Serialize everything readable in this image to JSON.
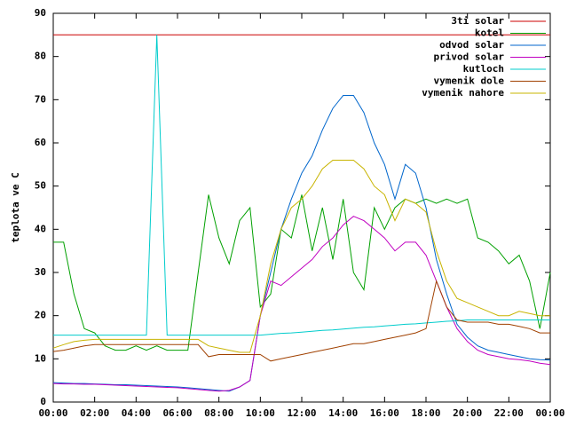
{
  "chart_data": {
    "type": "line",
    "y_label": "teplota ve C",
    "x": [
      0,
      0.5,
      1,
      1.5,
      2,
      2.5,
      3,
      3.5,
      4,
      4.5,
      5,
      5.5,
      6,
      6.5,
      7,
      7.5,
      8,
      8.5,
      9,
      9.5,
      10,
      10.5,
      11,
      11.5,
      12,
      12.5,
      13,
      13.5,
      14,
      14.5,
      15,
      15.5,
      16,
      16.5,
      17,
      17.5,
      18,
      18.5,
      19,
      19.5,
      20,
      20.5,
      21,
      21.5,
      22,
      22.5,
      23,
      23.5,
      24
    ],
    "xlim": [
      0,
      24
    ],
    "xticks": [
      {
        "value": 0,
        "label": "00:00"
      },
      {
        "value": 2,
        "label": "02:00"
      },
      {
        "value": 4,
        "label": "04:00"
      },
      {
        "value": 6,
        "label": "06:00"
      },
      {
        "value": 8,
        "label": "08:00"
      },
      {
        "value": 10,
        "label": "10:00"
      },
      {
        "value": 12,
        "label": "12:00"
      },
      {
        "value": 14,
        "label": "14:00"
      },
      {
        "value": 16,
        "label": "16:00"
      },
      {
        "value": 18,
        "label": "18:00"
      },
      {
        "value": 20,
        "label": "20:00"
      },
      {
        "value": 22,
        "label": "22:00"
      },
      {
        "value": 24,
        "label": "00:00"
      }
    ],
    "ylim": [
      0,
      90
    ],
    "yticks": [
      0,
      10,
      20,
      30,
      40,
      50,
      60,
      70,
      80,
      90
    ],
    "grid": false,
    "legend": "top-right",
    "series": [
      {
        "name": "3ti solar",
        "color": "#cc0000",
        "values": [
          85,
          85,
          85,
          85,
          85,
          85,
          85,
          85,
          85,
          85,
          85,
          85,
          85,
          85,
          85,
          85,
          85,
          85,
          85,
          85,
          85,
          85,
          85,
          85,
          85,
          85,
          85,
          85,
          85,
          85,
          85,
          85,
          85,
          85,
          85,
          85,
          85,
          85,
          85,
          85,
          85,
          85,
          85,
          85,
          85,
          85,
          85,
          85,
          85
        ]
      },
      {
        "name": "kotel",
        "color": "#00a000",
        "values": [
          37,
          37,
          25,
          17,
          16,
          13,
          12,
          12,
          13,
          12,
          13,
          12,
          12,
          12,
          30,
          48,
          38,
          32,
          42,
          45,
          22,
          25,
          40,
          38,
          48,
          35,
          45,
          33,
          47,
          30,
          26,
          45,
          40,
          45,
          47,
          46,
          47,
          46,
          47,
          46,
          47,
          38,
          37,
          35,
          32,
          34,
          28,
          17,
          30
        ]
      },
      {
        "name": "odvod solar",
        "color": "#0066cc",
        "values": [
          4.5,
          4.4,
          4.3,
          4.3,
          4.2,
          4.1,
          4,
          4,
          3.9,
          3.8,
          3.7,
          3.6,
          3.5,
          3.3,
          3.1,
          2.9,
          2.7,
          2.5,
          3.5,
          5,
          20,
          30,
          40,
          47,
          53,
          57,
          63,
          68,
          71,
          71,
          67,
          60,
          55,
          47,
          55,
          53,
          45,
          33,
          25,
          18,
          15,
          13,
          12,
          11.5,
          11,
          10.5,
          10,
          9.8,
          9.7
        ]
      },
      {
        "name": "privod solar",
        "color": "#c000c0",
        "values": [
          4.3,
          4.2,
          4.2,
          4.1,
          4.1,
          4,
          3.9,
          3.8,
          3.7,
          3.6,
          3.5,
          3.4,
          3.3,
          3.1,
          2.9,
          2.7,
          2.5,
          2.7,
          3.5,
          5,
          20,
          28,
          27,
          29,
          31,
          33,
          36,
          38,
          41,
          43,
          42,
          40,
          38,
          35,
          37,
          37,
          34,
          28,
          22,
          17,
          14,
          12,
          11,
          10.5,
          10,
          9.8,
          9.5,
          9,
          8.7
        ]
      },
      {
        "name": "kutloch",
        "color": "#00cccc",
        "values": [
          15.5,
          15.5,
          15.5,
          15.5,
          15.5,
          15.5,
          15.5,
          15.5,
          15.5,
          15.5,
          85,
          15.5,
          15.5,
          15.5,
          15.5,
          15.5,
          15.5,
          15.5,
          15.5,
          15.5,
          15.5,
          15.7,
          15.9,
          16,
          16.2,
          16.4,
          16.6,
          16.7,
          16.9,
          17.1,
          17.3,
          17.4,
          17.6,
          17.8,
          18,
          18.1,
          18.3,
          18.5,
          18.7,
          18.8,
          19,
          19,
          19,
          19,
          19,
          19,
          19,
          19,
          19
        ]
      },
      {
        "name": "vymenik dole",
        "color": "#a04000",
        "values": [
          11.7,
          12,
          12.5,
          13,
          13.3,
          13.3,
          13.3,
          13.3,
          13.3,
          13.3,
          13.3,
          13.3,
          13.3,
          13.3,
          13.3,
          10.5,
          11,
          11,
          11,
          11,
          11,
          9.5,
          10,
          10.5,
          11,
          11.5,
          12,
          12.5,
          13,
          13.5,
          13.5,
          14,
          14.5,
          15,
          15.5,
          16,
          17,
          28,
          22,
          19,
          18.5,
          18.5,
          18.5,
          18,
          18,
          17.5,
          17,
          16,
          16
        ]
      },
      {
        "name": "vymenik nahore",
        "color": "#c8b400",
        "values": [
          12.5,
          13.3,
          14,
          14.3,
          14.5,
          14.5,
          14.5,
          14.5,
          14.5,
          14.5,
          14.5,
          14.5,
          14.5,
          14.5,
          14.5,
          13,
          12.5,
          12,
          11.5,
          11.5,
          20,
          32,
          40,
          45,
          47,
          50,
          54,
          56,
          56,
          56,
          54,
          50,
          48,
          42,
          47,
          46,
          44,
          35,
          28,
          24,
          23,
          22,
          21,
          20,
          20,
          21,
          20.5,
          20,
          20
        ]
      }
    ]
  }
}
